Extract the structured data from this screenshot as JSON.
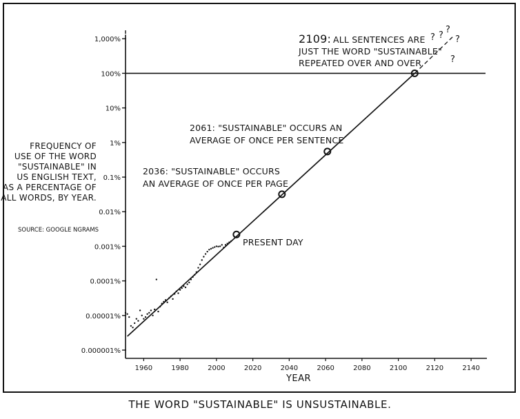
{
  "caption": "THE WORD \"SUSTAINABLE\" IS UNSUSTAINABLE.",
  "chart_data": {
    "type": "line",
    "xlabel": "YEAR",
    "ylabel_lines": [
      "FREQUENCY OF",
      "USE OF THE WORD",
      "\"SUSTAINABLE\" IN",
      "US ENGLISH TEXT,",
      "AS A PERCENTAGE OF",
      "ALL WORDS, BY YEAR."
    ],
    "source": "SOURCE: GOOGLE NGRAMS",
    "x_ticks": [
      1960,
      1980,
      2000,
      2020,
      2040,
      2060,
      2080,
      2100,
      2120,
      2140
    ],
    "xlim": [
      1950,
      2146
    ],
    "y_scale": "log",
    "y_ticks": [
      {
        "value": 1e-06,
        "label": "0.000001%"
      },
      {
        "value": 1e-05,
        "label": "0.00001%"
      },
      {
        "value": 0.0001,
        "label": "0.0001%"
      },
      {
        "value": 0.001,
        "label": "0.001%"
      },
      {
        "value": 0.01,
        "label": "0.01%"
      },
      {
        "value": 0.1,
        "label": "0.1%"
      },
      {
        "value": 1,
        "label": "1%"
      },
      {
        "value": 10,
        "label": "10%"
      },
      {
        "value": 100,
        "label": "100%"
      },
      {
        "value": 1000,
        "label": "1,000%"
      }
    ],
    "ylim": [
      1e-06,
      2000
    ],
    "reference_line": {
      "y": 100
    },
    "dashed_marker": {
      "x": 1950
    },
    "trend": {
      "x": [
        1951,
        2109
      ],
      "y": [
        2.5e-06,
        100
      ]
    },
    "extrapolation": {
      "x": [
        2109,
        2130
      ],
      "y": [
        100,
        1150
      ]
    },
    "observed": {
      "x": [
        1950,
        1951,
        1952,
        1953,
        1954,
        1955,
        1956,
        1957,
        1958,
        1959,
        1960,
        1961,
        1962,
        1963,
        1964,
        1965,
        1966,
        1967,
        1968,
        1969,
        1970,
        1971,
        1972,
        1973,
        1974,
        1975,
        1976,
        1977,
        1978,
        1979,
        1980,
        1981,
        1982,
        1983,
        1984,
        1985,
        1986,
        1987,
        1988,
        1989,
        1990,
        1991,
        1992,
        1993,
        1994,
        1995,
        1996,
        1997,
        1998,
        1999,
        2000,
        2001,
        2002,
        2003,
        2004,
        2005,
        2006,
        2007,
        2008
      ],
      "y": [
        1.2e-05,
        1.1e-05,
        9e-06,
        5e-06,
        4.5e-06,
        6e-06,
        8e-06,
        7e-06,
        1.4e-05,
        1e-05,
        8e-06,
        9e-06,
        1.1e-05,
        1.2e-05,
        1.4e-05,
        1e-05,
        1.5e-05,
        0.00011,
        1.3e-05,
        1.8e-05,
        2.2e-05,
        2.5e-05,
        2.8e-05,
        2.4e-05,
        3.2e-05,
        3.6e-05,
        3e-05,
        4.2e-05,
        5e-05,
        4.4e-05,
        5.5e-05,
        6.2e-05,
        7e-05,
        6.5e-05,
        8e-05,
        9e-05,
        0.00011,
        0.00013,
        0.00015,
        0.00018,
        0.00024,
        0.0003,
        0.0004,
        0.0005,
        0.0006,
        0.0007,
        0.0008,
        0.00085,
        0.0009,
        0.00095,
        0.001,
        0.00098,
        0.001,
        0.0011,
        0.00092,
        0.0011,
        0.0012,
        0.0013,
        0.0014
      ]
    },
    "milestones": [
      {
        "x": 2011,
        "y": 0.0022,
        "label": "PRESENT DAY"
      },
      {
        "x": 2036,
        "y": 0.032,
        "label": "2036: \"SUSTAINABLE\" OCCURS AN AVERAGE OF ONCE PER PAGE"
      },
      {
        "x": 2061,
        "y": 0.55,
        "label": "2061: \"SUSTAINABLE\" OCCURS AN AVERAGE OF ONCE PER SENTENCE"
      },
      {
        "x": 2109,
        "y": 100,
        "label": "2109: ALL SENTENCES ARE JUST THE WORD \"SUSTAINABLE\" REPEATED OVER AND OVER."
      }
    ],
    "annotations": {
      "present_day": "PRESENT DAY",
      "m2036_line1": "2036: \"SUSTAINABLE\" OCCURS",
      "m2036_line2": "AN AVERAGE OF ONCE PER PAGE",
      "m2061_line1": "2061: \"SUSTAINABLE\" OCCURS AN",
      "m2061_line2": "AVERAGE OF ONCE PER SENTENCE",
      "m2109_year": "2109:",
      "m2109_line1": "ALL SENTENCES ARE",
      "m2109_line2": "JUST THE WORD \"SUSTAINABLE\"",
      "m2109_line3": "REPEATED OVER AND OVER.",
      "question_marks": [
        "?",
        "?",
        "?",
        "?",
        "?"
      ]
    }
  }
}
